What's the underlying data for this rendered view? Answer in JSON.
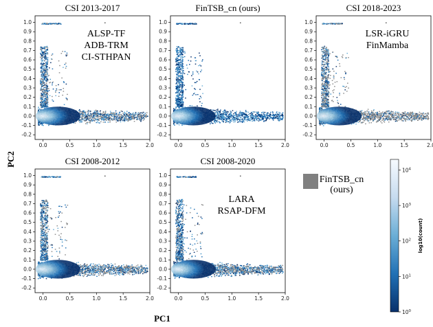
{
  "chart_data": {
    "type": "heatmap",
    "xlabel": "PC1",
    "ylabel": "PC2",
    "xlim": [
      -0.15,
      2.0
    ],
    "ylim": [
      -0.25,
      1.07
    ],
    "xticks": [
      "0.0",
      "0.5",
      "1.0",
      "1.5",
      "2.0"
    ],
    "yticks": [
      "-0.2",
      "-0.1",
      "0.0",
      "0.1",
      "0.2",
      "0.3",
      "0.4",
      "0.5",
      "0.6",
      "0.7",
      "0.8",
      "0.9",
      "1.0"
    ],
    "panels": [
      {
        "title": "CSI 2013-2017",
        "annotation": [
          "ALSP-TF",
          "ADB-TRM",
          "CI-STHPAN"
        ],
        "grey_share": 0.45
      },
      {
        "title": "FinTSB_cn (ours)",
        "annotation": [],
        "grey_share": 0.0
      },
      {
        "title": "CSI 2018-2023",
        "annotation": [
          "LSR-iGRU",
          "FinMamba"
        ],
        "grey_share": 0.7
      },
      {
        "title": "CSI 2008-2012",
        "annotation": [],
        "grey_share": 0.45
      },
      {
        "title": "CSI 2008-2020",
        "annotation": [
          "LARA",
          "RSAP-DFM"
        ],
        "grey_share": 0.35
      }
    ],
    "legend": {
      "label": [
        "FinTSB_cn",
        "(ours)"
      ],
      "color": "#808080"
    },
    "colorbar": {
      "label": "log10(count)",
      "ticks": [
        "10",
        "10",
        "10",
        "10",
        "10"
      ],
      "exponents": [
        "0",
        "1",
        "2",
        "3",
        "4"
      ],
      "range": [
        0,
        4.3
      ],
      "colormap": [
        "#08306b",
        "#2171b5",
        "#6baed6",
        "#c6dbef",
        "#f7fbff"
      ]
    }
  }
}
